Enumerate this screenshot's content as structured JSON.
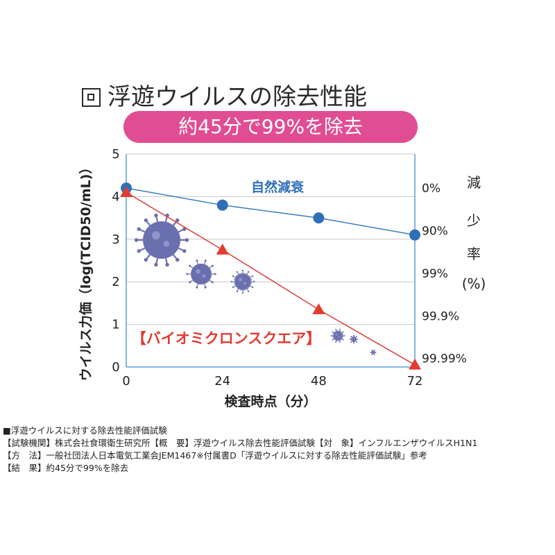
{
  "header": {
    "title": "浮遊ウイルスの除去性能",
    "banner": "約45分で99%を除去"
  },
  "chart_data": {
    "type": "line",
    "title": "浮遊ウイルスの除去性能",
    "subtitle": "約45分で99%を除去",
    "xlabel": "検査時点（分）",
    "ylabel": "ウイルス力価（log(TCID50/mL)）",
    "y2label": "減少率(%)",
    "x": [
      0,
      24,
      48,
      72
    ],
    "x_ticks": [
      "0",
      "24",
      "48",
      "72"
    ],
    "y_ticks": [
      "0",
      "1",
      "2",
      "3",
      "4",
      "5"
    ],
    "ylim": [
      0,
      5
    ],
    "y2_ticks": [
      {
        "label": "0%",
        "y": 4.2
      },
      {
        "label": "90%",
        "y": 3.2
      },
      {
        "label": "99%",
        "y": 2.2
      },
      {
        "label": "99.9%",
        "y": 1.2
      },
      {
        "label": "99.99%",
        "y": 0.2
      }
    ],
    "grid": true,
    "series": [
      {
        "name": "自然減衰",
        "values": [
          4.2,
          3.8,
          3.5,
          3.1
        ],
        "color": "#2f6fb8",
        "marker": "circle",
        "line_color": "#3b7dc2"
      },
      {
        "name": "【バイオミクロンスクエア】",
        "values": [
          4.1,
          2.75,
          1.35,
          0.05
        ],
        "color": "#e23b32",
        "marker": "triangle",
        "line_color": "#e03a35"
      }
    ]
  },
  "notes": {
    "line1": "■浮遊ウイルスに対する除去性能評価試験",
    "line2": "【試験機関】株式会社食環衛生研究所【概　要】浮遊ウイルス除去性能評価試験【対　象】インフルエンザウイルスH1N1",
    "line3": "【方　法】一般社団法人日本電気工業会JEM1467※付属書D「浮遊ウイルスに対する除去性能評価試験」参考",
    "line4": "【結　果】約45分で99%を除去"
  },
  "colors": {
    "axis": "#5aa0d8",
    "grid": "#c8c8c8",
    "banner": "#e04d92",
    "virus": "#6a6fae"
  },
  "icons": [
    "virus-icon"
  ]
}
